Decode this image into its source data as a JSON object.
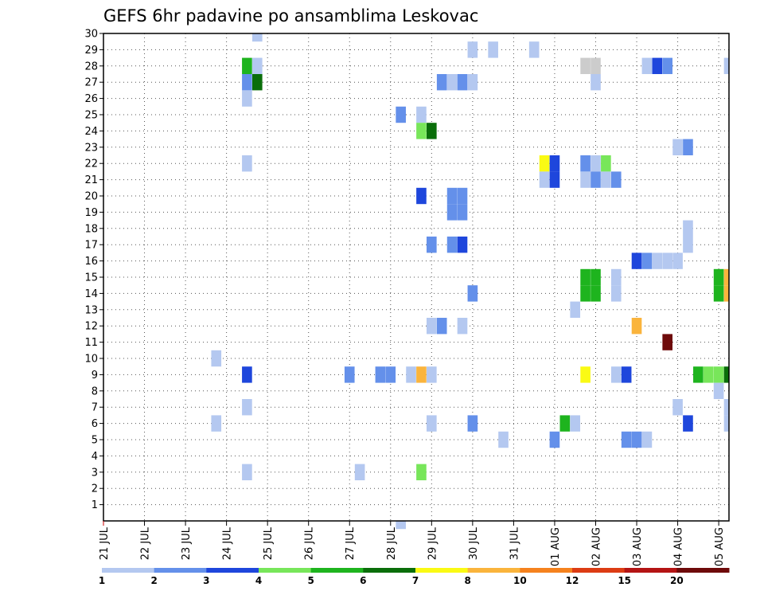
{
  "chart_data": {
    "type": "heatmap",
    "title": "GEFS 6hr padavine po ansamblima Leskovac",
    "xlabel": "",
    "ylabel": "",
    "x_ticks": [
      "21 JUL",
      "22 JUL",
      "23 JUL",
      "24 JUL",
      "25 JUL",
      "26 JUL",
      "27 JUL",
      "28 JUL",
      "29 JUL",
      "30 JUL",
      "31 JUL",
      "01 AUG",
      "02 AUG",
      "03 AUG",
      "04 AUG",
      "05 AUG"
    ],
    "y_ticks": [
      "1",
      "2",
      "3",
      "4",
      "5",
      "6",
      "7",
      "8",
      "9",
      "10",
      "11",
      "12",
      "13",
      "14",
      "15",
      "16",
      "17",
      "18",
      "19",
      "20",
      "21",
      "22",
      "23",
      "24",
      "25",
      "26",
      "27",
      "28",
      "29",
      "30"
    ],
    "xlim": [
      0,
      61
    ],
    "ylim": [
      0,
      30
    ],
    "x_unit": "6-hour steps from 21 JUL 00Z",
    "grid": true,
    "legend": "bottom",
    "colorbar": {
      "labels": [
        "1",
        "2",
        "3",
        "4",
        "5",
        "6",
        "7",
        "8",
        "10",
        "12",
        "15",
        "20"
      ],
      "colors": [
        "#b4c8f0",
        "#6490ea",
        "#1e46dc",
        "#78e65a",
        "#1eb41e",
        "#0a6e0a",
        "#fafa14",
        "#fab43c",
        "#f5821e",
        "#dc3c14",
        "#b41414",
        "#6e0a0a"
      ]
    },
    "cells": [
      [
        15,
        30,
        1
      ],
      [
        14,
        28,
        5
      ],
      [
        15,
        28,
        1
      ],
      [
        47,
        28,
        13
      ],
      [
        48,
        28,
        14
      ],
      [
        53,
        28,
        1
      ],
      [
        54,
        28,
        3
      ],
      [
        55,
        28,
        2
      ],
      [
        61,
        28,
        1
      ],
      [
        36,
        29,
        1
      ],
      [
        38,
        29,
        1
      ],
      [
        42,
        29,
        1
      ],
      [
        14,
        27,
        2
      ],
      [
        15,
        27,
        6
      ],
      [
        33,
        27,
        2
      ],
      [
        34,
        27,
        1
      ],
      [
        35,
        27,
        2
      ],
      [
        36,
        27,
        1
      ],
      [
        48,
        27,
        1
      ],
      [
        14,
        26,
        1
      ],
      [
        29,
        25,
        2
      ],
      [
        31,
        25,
        1
      ],
      [
        31,
        24,
        4
      ],
      [
        32,
        24,
        6
      ],
      [
        56,
        23,
        1
      ],
      [
        57,
        23,
        2
      ],
      [
        14,
        22,
        1
      ],
      [
        43,
        22,
        7
      ],
      [
        44,
        22,
        3
      ],
      [
        47,
        22,
        2
      ],
      [
        48,
        22,
        1
      ],
      [
        49,
        22,
        4
      ],
      [
        43,
        21,
        1
      ],
      [
        44,
        21,
        3
      ],
      [
        47,
        21,
        1
      ],
      [
        48,
        21,
        2
      ],
      [
        49,
        21,
        1
      ],
      [
        50,
        21,
        2
      ],
      [
        31,
        20,
        3
      ],
      [
        34,
        20,
        2
      ],
      [
        35,
        20,
        2
      ],
      [
        34,
        19,
        2
      ],
      [
        35,
        19,
        2
      ],
      [
        57,
        18,
        1
      ],
      [
        32,
        17,
        2
      ],
      [
        34,
        17,
        2
      ],
      [
        35,
        17,
        3
      ],
      [
        57,
        17,
        1
      ],
      [
        52,
        16,
        3
      ],
      [
        53,
        16,
        2
      ],
      [
        54,
        16,
        1
      ],
      [
        55,
        16,
        1
      ],
      [
        56,
        16,
        1
      ],
      [
        47,
        15,
        5
      ],
      [
        48,
        15,
        5
      ],
      [
        50,
        15,
        1
      ],
      [
        60,
        15,
        5
      ],
      [
        61,
        15,
        8
      ],
      [
        36,
        14,
        2
      ],
      [
        47,
        14,
        5
      ],
      [
        48,
        14,
        5
      ],
      [
        50,
        14,
        1
      ],
      [
        60,
        14,
        5
      ],
      [
        61,
        14,
        8
      ],
      [
        46,
        13,
        1
      ],
      [
        32,
        12,
        1
      ],
      [
        33,
        12,
        2
      ],
      [
        35,
        12,
        1
      ],
      [
        52,
        12,
        8
      ],
      [
        55,
        11,
        12
      ],
      [
        11,
        10,
        1
      ],
      [
        14,
        9,
        3
      ],
      [
        24,
        9,
        2
      ],
      [
        27,
        9,
        2
      ],
      [
        28,
        9,
        2
      ],
      [
        30,
        9,
        1
      ],
      [
        31,
        9,
        8
      ],
      [
        32,
        9,
        1
      ],
      [
        47,
        9,
        7
      ],
      [
        50,
        9,
        1
      ],
      [
        51,
        9,
        3
      ],
      [
        58,
        9,
        5
      ],
      [
        59,
        9,
        4
      ],
      [
        60,
        9,
        4
      ],
      [
        61,
        9,
        6
      ],
      [
        60,
        8,
        1
      ],
      [
        14,
        7,
        1
      ],
      [
        56,
        7,
        1
      ],
      [
        61,
        7,
        1
      ],
      [
        11,
        6,
        1
      ],
      [
        32,
        6,
        1
      ],
      [
        36,
        6,
        2
      ],
      [
        45,
        6,
        5
      ],
      [
        46,
        6,
        1
      ],
      [
        57,
        6,
        3
      ],
      [
        61,
        6,
        1
      ],
      [
        39,
        5,
        1
      ],
      [
        44,
        5,
        2
      ],
      [
        51,
        5,
        2
      ],
      [
        52,
        5,
        2
      ],
      [
        53,
        5,
        1
      ],
      [
        14,
        3,
        1
      ],
      [
        25,
        3,
        1
      ],
      [
        31,
        3,
        4
      ],
      [
        29,
        0,
        1
      ]
    ]
  }
}
